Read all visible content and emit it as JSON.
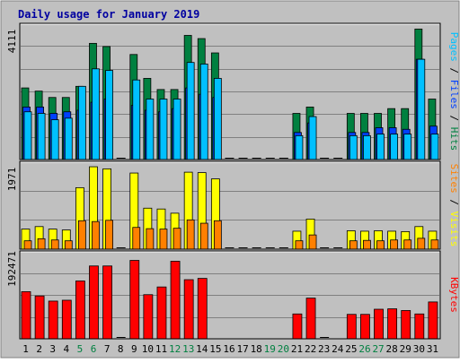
{
  "title": "Daily usage for January 2019",
  "colors": {
    "background": "#c0c0c0",
    "title": "#0000a0",
    "grid": "#808080",
    "frame": "#000000",
    "hits": "#008040",
    "files": "#0040ff",
    "pages": "#00c0ff",
    "visits": "#ffff00",
    "sites": "#ff8000",
    "kbytes": "#ff0000",
    "weekday_label": "#000000",
    "weekend_label": "#008040"
  },
  "chart_data": [
    {
      "type": "bar",
      "name": "hits-files-pages",
      "ymax_label": "4111",
      "ymax": 4111,
      "legend": [
        {
          "key": "pages",
          "label": "Pages"
        },
        {
          "key": "files",
          "label": "Files"
        },
        {
          "key": "hits",
          "label": "Hits"
        }
      ],
      "days": [
        1,
        2,
        3,
        4,
        5,
        6,
        7,
        8,
        9,
        10,
        11,
        12,
        13,
        14,
        15,
        16,
        17,
        18,
        19,
        20,
        21,
        22,
        23,
        24,
        25,
        26,
        27,
        28,
        29,
        30,
        31
      ],
      "series": [
        {
          "name": "Hits",
          "color_key": "hits",
          "values": [
            2250,
            2150,
            1950,
            1950,
            2300,
            3650,
            3550,
            0,
            3300,
            2550,
            2200,
            2200,
            3900,
            3800,
            3350,
            0,
            0,
            0,
            0,
            0,
            1450,
            1650,
            0,
            0,
            1450,
            1450,
            1450,
            1600,
            1600,
            4100,
            1900
          ]
        },
        {
          "name": "Files",
          "color_key": "files",
          "values": [
            1650,
            1650,
            1450,
            1500,
            1550,
            1800,
            1900,
            0,
            1700,
            1550,
            1500,
            1600,
            2250,
            2050,
            1950,
            0,
            0,
            0,
            0,
            0,
            850,
            1150,
            0,
            0,
            850,
            850,
            1000,
            1000,
            950,
            3150,
            1050
          ]
        },
        {
          "name": "Pages",
          "color_key": "pages",
          "values": [
            1500,
            1450,
            1250,
            1300,
            2300,
            2850,
            2800,
            0,
            2500,
            1900,
            1900,
            1900,
            3050,
            3000,
            2550,
            0,
            0,
            0,
            0,
            0,
            750,
            1350,
            0,
            0,
            750,
            750,
            800,
            800,
            800,
            3150,
            800
          ]
        }
      ]
    },
    {
      "type": "bar",
      "name": "visits-sites",
      "ymax_label": "1971",
      "ymax": 1971,
      "legend": [
        {
          "key": "sites",
          "label": "Sites"
        },
        {
          "key": "visits",
          "label": "Visits"
        }
      ],
      "days": [
        1,
        2,
        3,
        4,
        5,
        6,
        7,
        8,
        9,
        10,
        11,
        12,
        13,
        14,
        15,
        16,
        17,
        18,
        19,
        20,
        21,
        22,
        23,
        24,
        25,
        26,
        27,
        28,
        29,
        30,
        31
      ],
      "series": [
        {
          "name": "Visits",
          "color_key": "visits",
          "values": [
            480,
            540,
            480,
            460,
            1470,
            1970,
            1920,
            0,
            1820,
            980,
            960,
            860,
            1840,
            1830,
            1680,
            0,
            0,
            0,
            0,
            0,
            430,
            720,
            0,
            0,
            440,
            430,
            440,
            430,
            420,
            540,
            430
          ]
        },
        {
          "name": "Sites",
          "color_key": "sites",
          "values": [
            200,
            250,
            220,
            200,
            680,
            660,
            690,
            0,
            520,
            490,
            480,
            500,
            700,
            620,
            680,
            0,
            0,
            0,
            0,
            0,
            200,
            340,
            0,
            0,
            200,
            210,
            200,
            220,
            220,
            260,
            220
          ]
        }
      ]
    },
    {
      "type": "bar",
      "name": "kbytes",
      "ymax_label": "192471",
      "ymax": 192471,
      "legend": [
        {
          "key": "kbytes",
          "label": "KBytes"
        }
      ],
      "days": [
        1,
        2,
        3,
        4,
        5,
        6,
        7,
        8,
        9,
        10,
        11,
        12,
        13,
        14,
        15,
        16,
        17,
        18,
        19,
        20,
        21,
        22,
        23,
        24,
        25,
        26,
        27,
        28,
        29,
        30,
        31
      ],
      "series": [
        {
          "name": "KBytes",
          "color_key": "kbytes",
          "values": [
            110000,
            100000,
            88000,
            90000,
            135000,
            170000,
            170000,
            0,
            183000,
            103000,
            121000,
            181000,
            138000,
            141000,
            0,
            0,
            0,
            0,
            0,
            0,
            58000,
            95000,
            0,
            0,
            57000,
            57000,
            69000,
            70000,
            66000,
            58000,
            86000
          ]
        }
      ]
    }
  ],
  "x_axis": {
    "labels": [
      "1",
      "2",
      "3",
      "4",
      "5",
      "6",
      "7",
      "8",
      "9",
      "10",
      "11",
      "12",
      "13",
      "14",
      "15",
      "16",
      "17",
      "18",
      "19",
      "20",
      "21",
      "22",
      "23",
      "24",
      "25",
      "26",
      "27",
      "28",
      "29",
      "30",
      "31"
    ],
    "weekend_days": [
      5,
      6,
      12,
      13,
      19,
      20,
      26,
      27
    ]
  }
}
